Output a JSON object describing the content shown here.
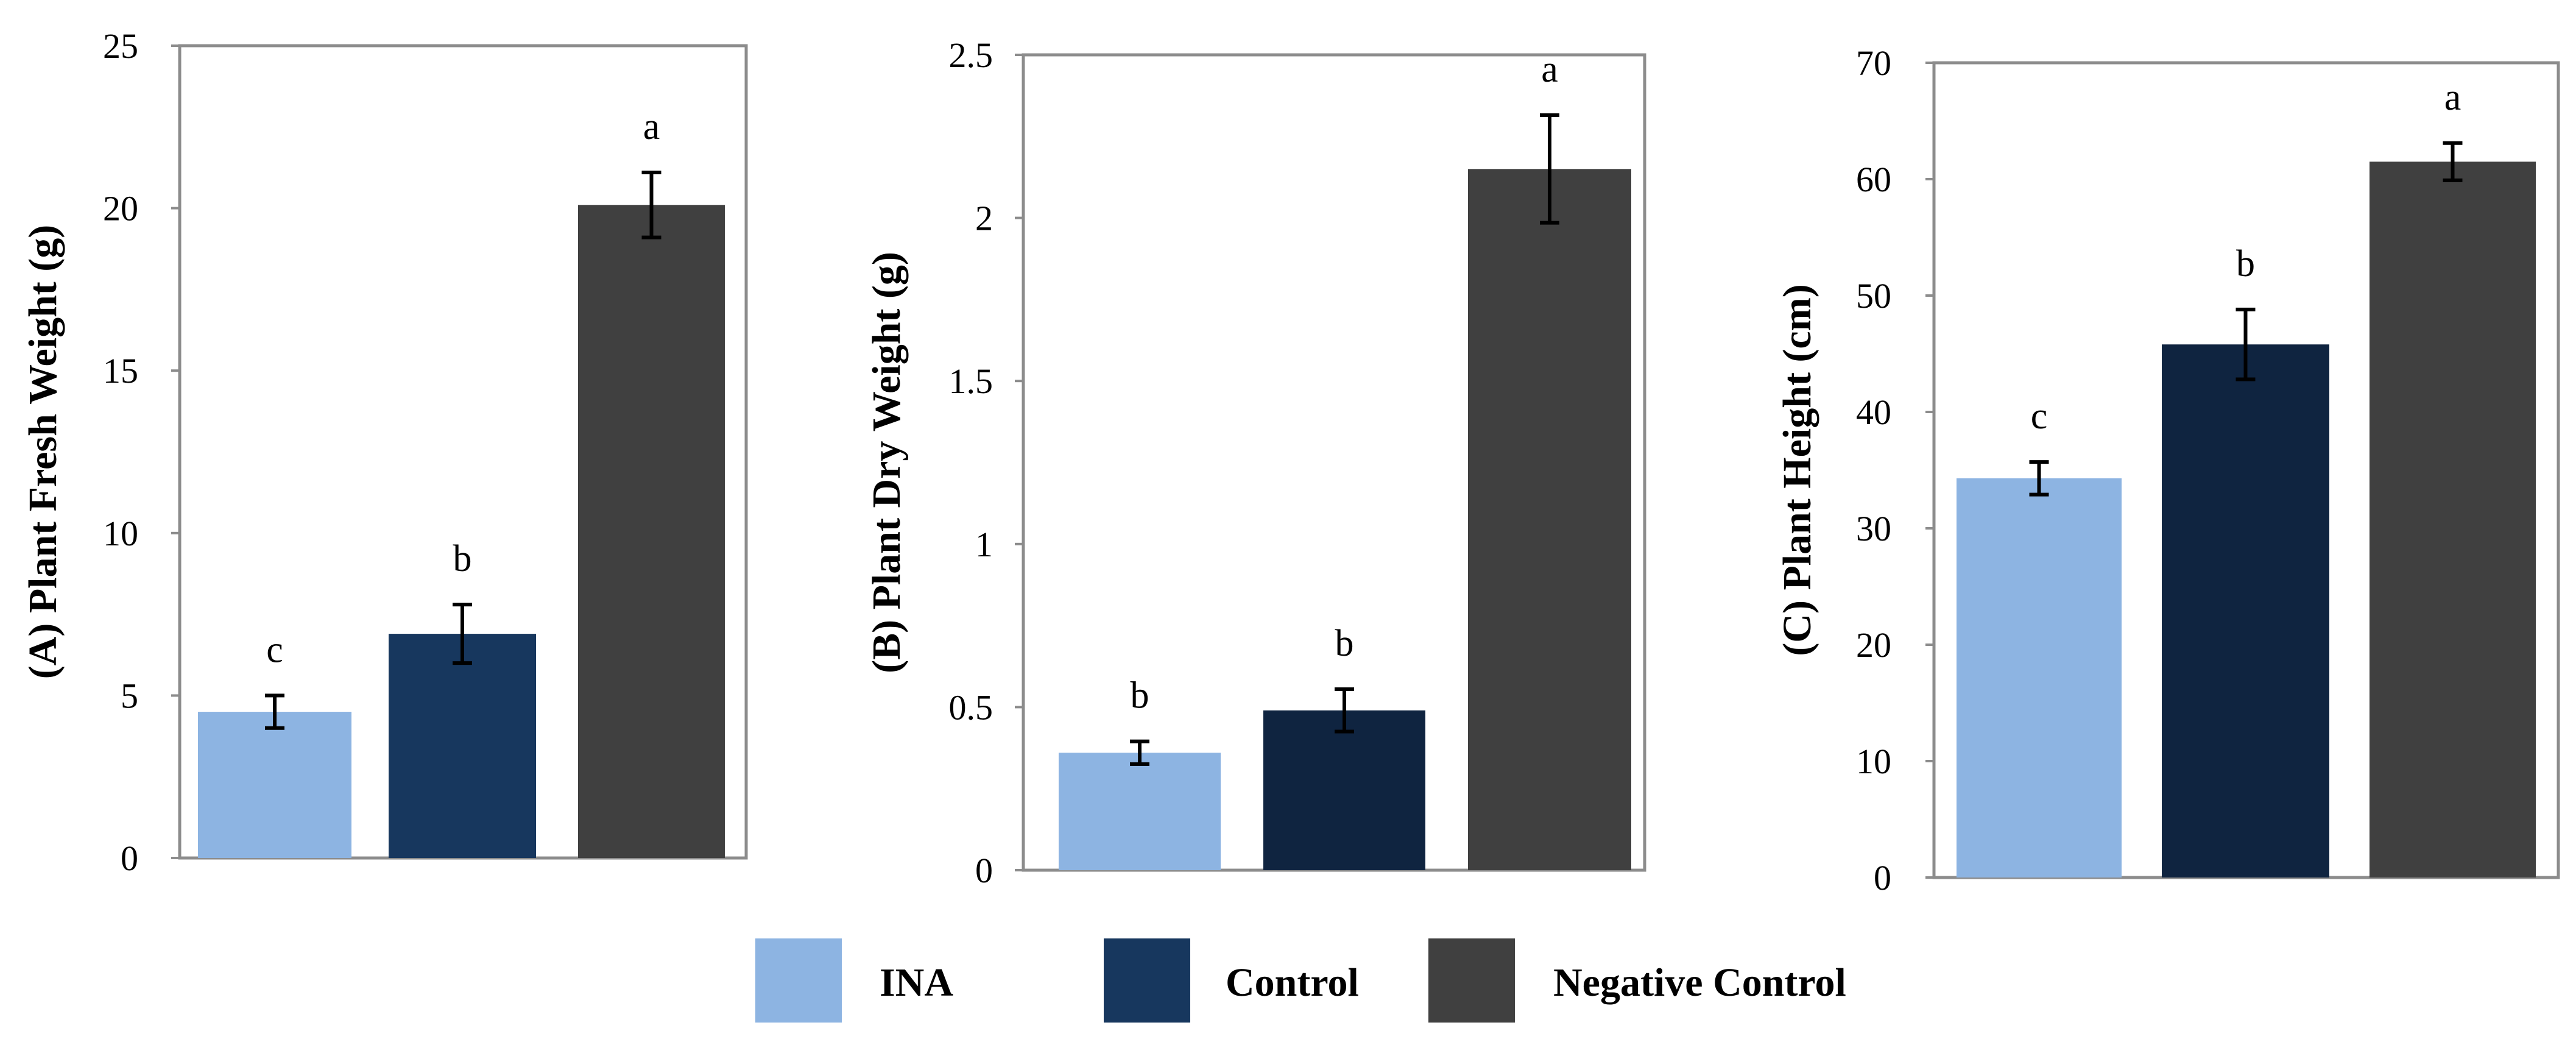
{
  "legend": {
    "items": [
      {
        "label": "INA",
        "color": "#8db4e2"
      },
      {
        "label": "Control",
        "color": "#17375e"
      },
      {
        "label": "Negative Control",
        "color": "#404040"
      }
    ]
  },
  "chart_data": [
    {
      "type": "bar",
      "title": "",
      "ylabel": "(A) Plant Fresh Weight (g)",
      "xlabel": "",
      "ylim": [
        0,
        25
      ],
      "yticks": [
        0,
        5,
        10,
        15,
        20,
        25
      ],
      "ytick_labels": [
        "0",
        "5",
        "10",
        "15",
        "20",
        "25"
      ],
      "categories": [
        "INA",
        "Control",
        "Negative Control"
      ],
      "values": [
        4.5,
        6.9,
        20.1
      ],
      "errors": [
        0.5,
        0.9,
        1.0
      ],
      "letters": [
        "c",
        "b",
        "a"
      ],
      "colors": [
        "#8db4e2",
        "#17375e",
        "#404040"
      ]
    },
    {
      "type": "bar",
      "title": "",
      "ylabel": "(B) Plant Dry Weight (g)",
      "xlabel": "",
      "ylim": [
        0,
        2.5
      ],
      "yticks": [
        0,
        0.5,
        1,
        1.5,
        2,
        2.5
      ],
      "ytick_labels": [
        "0",
        "0.5",
        "1",
        "1.5",
        "2",
        "2.5"
      ],
      "categories": [
        "INA",
        "Control",
        "Negative Control"
      ],
      "values": [
        0.36,
        0.49,
        2.15
      ],
      "errors": [
        0.035,
        0.065,
        0.165
      ],
      "letters": [
        "b",
        "b",
        "a"
      ],
      "colors": [
        "#8db4e2",
        "#0f2440",
        "#404040"
      ]
    },
    {
      "type": "bar",
      "title": "",
      "ylabel": "(C) Plant Height (cm)",
      "xlabel": "",
      "ylim": [
        0,
        70
      ],
      "yticks": [
        0,
        10,
        20,
        30,
        40,
        50,
        60,
        70
      ],
      "ytick_labels": [
        "0",
        "10",
        "20",
        "30",
        "40",
        "50",
        "60",
        "70"
      ],
      "categories": [
        "INA",
        "Control",
        "Negative Control"
      ],
      "values": [
        34.3,
        45.8,
        61.5
      ],
      "errors": [
        1.4,
        3.0,
        1.6
      ],
      "letters": [
        "c",
        "b",
        "a"
      ],
      "colors": [
        "#8db4e2",
        "#0f2440",
        "#404040"
      ]
    }
  ]
}
